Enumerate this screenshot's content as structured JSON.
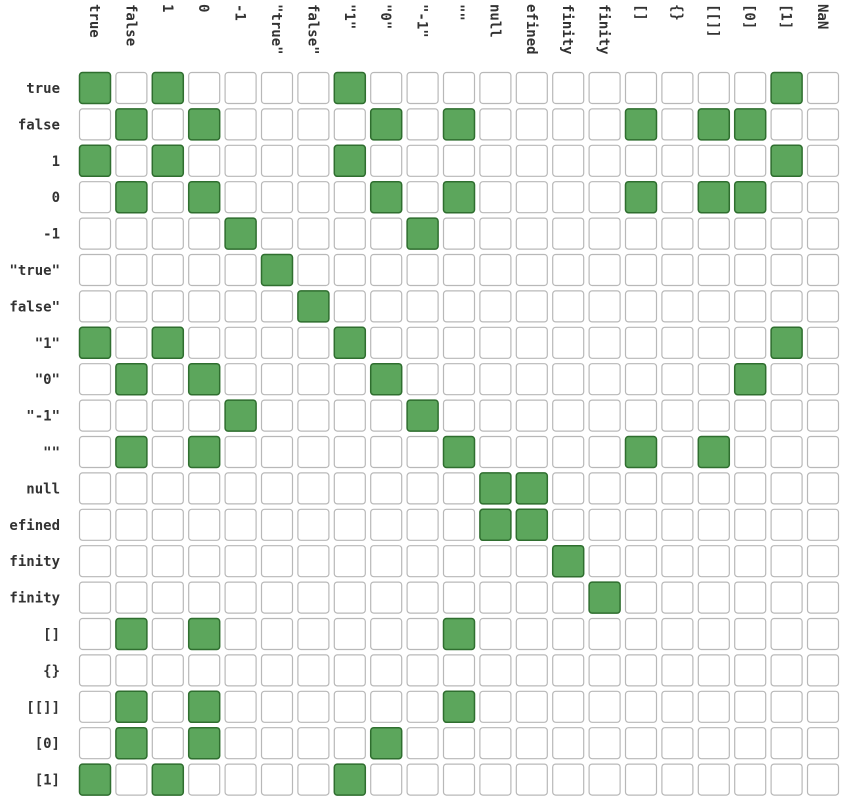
{
  "table": {
    "columns": [
      "true",
      "false",
      "1",
      "0",
      "-1",
      "\"true\"",
      "false\"",
      "\"1\"",
      "\"0\"",
      "\"-1\"",
      "\"\"",
      "null",
      "efined",
      "finity",
      "finity",
      "[]",
      "{}",
      "[[]]",
      "[0]",
      "[1]",
      "NaN"
    ],
    "rows": [
      "true",
      "false",
      "1",
      "0",
      "-1",
      "\"true\"",
      "false\"",
      "\"1\"",
      "\"0\"",
      "\"-1\"",
      "\"\"",
      "null",
      "efined",
      "finity",
      "finity",
      "[]",
      "{}",
      "[[]]",
      "[0]",
      "[1]"
    ],
    "cells": [
      [
        1,
        0,
        1,
        0,
        0,
        0,
        0,
        1,
        0,
        0,
        0,
        0,
        0,
        0,
        0,
        0,
        0,
        0,
        0,
        1,
        0
      ],
      [
        0,
        1,
        0,
        1,
        0,
        0,
        0,
        0,
        1,
        0,
        1,
        0,
        0,
        0,
        0,
        1,
        0,
        1,
        1,
        0,
        0
      ],
      [
        1,
        0,
        1,
        0,
        0,
        0,
        0,
        1,
        0,
        0,
        0,
        0,
        0,
        0,
        0,
        0,
        0,
        0,
        0,
        1,
        0
      ],
      [
        0,
        1,
        0,
        1,
        0,
        0,
        0,
        0,
        1,
        0,
        1,
        0,
        0,
        0,
        0,
        1,
        0,
        1,
        1,
        0,
        0
      ],
      [
        0,
        0,
        0,
        0,
        1,
        0,
        0,
        0,
        0,
        1,
        0,
        0,
        0,
        0,
        0,
        0,
        0,
        0,
        0,
        0,
        0
      ],
      [
        0,
        0,
        0,
        0,
        0,
        1,
        0,
        0,
        0,
        0,
        0,
        0,
        0,
        0,
        0,
        0,
        0,
        0,
        0,
        0,
        0
      ],
      [
        0,
        0,
        0,
        0,
        0,
        0,
        1,
        0,
        0,
        0,
        0,
        0,
        0,
        0,
        0,
        0,
        0,
        0,
        0,
        0,
        0
      ],
      [
        1,
        0,
        1,
        0,
        0,
        0,
        0,
        1,
        0,
        0,
        0,
        0,
        0,
        0,
        0,
        0,
        0,
        0,
        0,
        1,
        0
      ],
      [
        0,
        1,
        0,
        1,
        0,
        0,
        0,
        0,
        1,
        0,
        0,
        0,
        0,
        0,
        0,
        0,
        0,
        0,
        1,
        0,
        0
      ],
      [
        0,
        0,
        0,
        0,
        1,
        0,
        0,
        0,
        0,
        1,
        0,
        0,
        0,
        0,
        0,
        0,
        0,
        0,
        0,
        0,
        0
      ],
      [
        0,
        1,
        0,
        1,
        0,
        0,
        0,
        0,
        0,
        0,
        1,
        0,
        0,
        0,
        0,
        1,
        0,
        1,
        0,
        0,
        0
      ],
      [
        0,
        0,
        0,
        0,
        0,
        0,
        0,
        0,
        0,
        0,
        0,
        1,
        1,
        0,
        0,
        0,
        0,
        0,
        0,
        0,
        0
      ],
      [
        0,
        0,
        0,
        0,
        0,
        0,
        0,
        0,
        0,
        0,
        0,
        1,
        1,
        0,
        0,
        0,
        0,
        0,
        0,
        0,
        0
      ],
      [
        0,
        0,
        0,
        0,
        0,
        0,
        0,
        0,
        0,
        0,
        0,
        0,
        0,
        1,
        0,
        0,
        0,
        0,
        0,
        0,
        0
      ],
      [
        0,
        0,
        0,
        0,
        0,
        0,
        0,
        0,
        0,
        0,
        0,
        0,
        0,
        0,
        1,
        0,
        0,
        0,
        0,
        0,
        0
      ],
      [
        0,
        1,
        0,
        1,
        0,
        0,
        0,
        0,
        0,
        0,
        1,
        0,
        0,
        0,
        0,
        0,
        0,
        0,
        0,
        0,
        0
      ],
      [
        0,
        0,
        0,
        0,
        0,
        0,
        0,
        0,
        0,
        0,
        0,
        0,
        0,
        0,
        0,
        0,
        0,
        0,
        0,
        0,
        0
      ],
      [
        0,
        1,
        0,
        1,
        0,
        0,
        0,
        0,
        0,
        0,
        1,
        0,
        0,
        0,
        0,
        0,
        0,
        0,
        0,
        0,
        0
      ],
      [
        0,
        1,
        0,
        1,
        0,
        0,
        0,
        0,
        1,
        0,
        0,
        0,
        0,
        0,
        0,
        0,
        0,
        0,
        0,
        0,
        0
      ],
      [
        1,
        0,
        1,
        0,
        0,
        0,
        0,
        1,
        0,
        0,
        0,
        0,
        0,
        0,
        0,
        0,
        0,
        0,
        0,
        0,
        0
      ]
    ]
  }
}
